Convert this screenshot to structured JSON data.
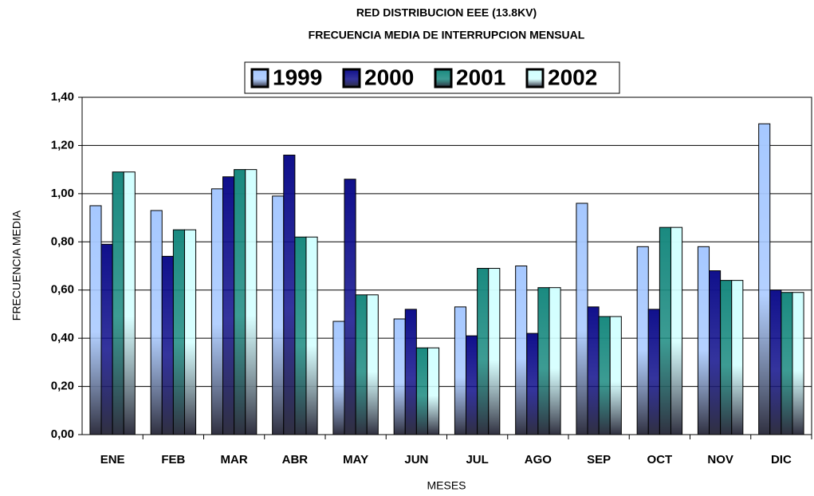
{
  "chart_data": {
    "type": "bar",
    "title": "RED DISTRIBUCION EEE (13.8KV)",
    "subtitle": "FRECUENCIA MEDIA DE INTERRUPCION MENSUAL",
    "x_label": "MESES",
    "y_label": "FRECUENCIA MEDIA",
    "categories": [
      "ENE",
      "FEB",
      "MAR",
      "ABR",
      "MAY",
      "JUN",
      "JUL",
      "AGO",
      "SEP",
      "OCT",
      "NOV",
      "DIC"
    ],
    "series": [
      {
        "name": "1999",
        "color": "#a6c8ff",
        "values": [
          0.95,
          0.93,
          1.02,
          0.99,
          0.47,
          0.48,
          0.53,
          0.7,
          0.96,
          0.78,
          0.78,
          1.29
        ]
      },
      {
        "name": "2000",
        "color": "#10108c",
        "values": [
          0.79,
          0.74,
          1.07,
          1.16,
          1.06,
          0.52,
          0.41,
          0.42,
          0.53,
          0.52,
          0.68,
          0.6
        ]
      },
      {
        "name": "2001",
        "color": "#1a8a80",
        "values": [
          1.09,
          0.85,
          1.1,
          0.82,
          0.58,
          0.36,
          0.69,
          0.61,
          0.49,
          0.86,
          0.64,
          0.59
        ]
      },
      {
        "name": "2002",
        "color": "#d2ffff",
        "values": [
          1.09,
          0.85,
          1.1,
          0.82,
          0.58,
          0.36,
          0.69,
          0.61,
          0.49,
          0.86,
          0.64,
          0.59
        ]
      }
    ],
    "ylim": [
      0,
      1.4
    ],
    "yticks": [
      {
        "value": 0,
        "label": "0,00"
      },
      {
        "value": 0.2,
        "label": "0,20"
      },
      {
        "value": 0.4,
        "label": "0,40"
      },
      {
        "value": 0.6,
        "label": "0,60"
      },
      {
        "value": 0.8,
        "label": "0,80"
      },
      {
        "value": 1.0,
        "label": "1,00"
      },
      {
        "value": 1.2,
        "label": "1,20"
      },
      {
        "value": 1.4,
        "label": "1,40"
      }
    ],
    "grid": true,
    "legend": "top"
  }
}
